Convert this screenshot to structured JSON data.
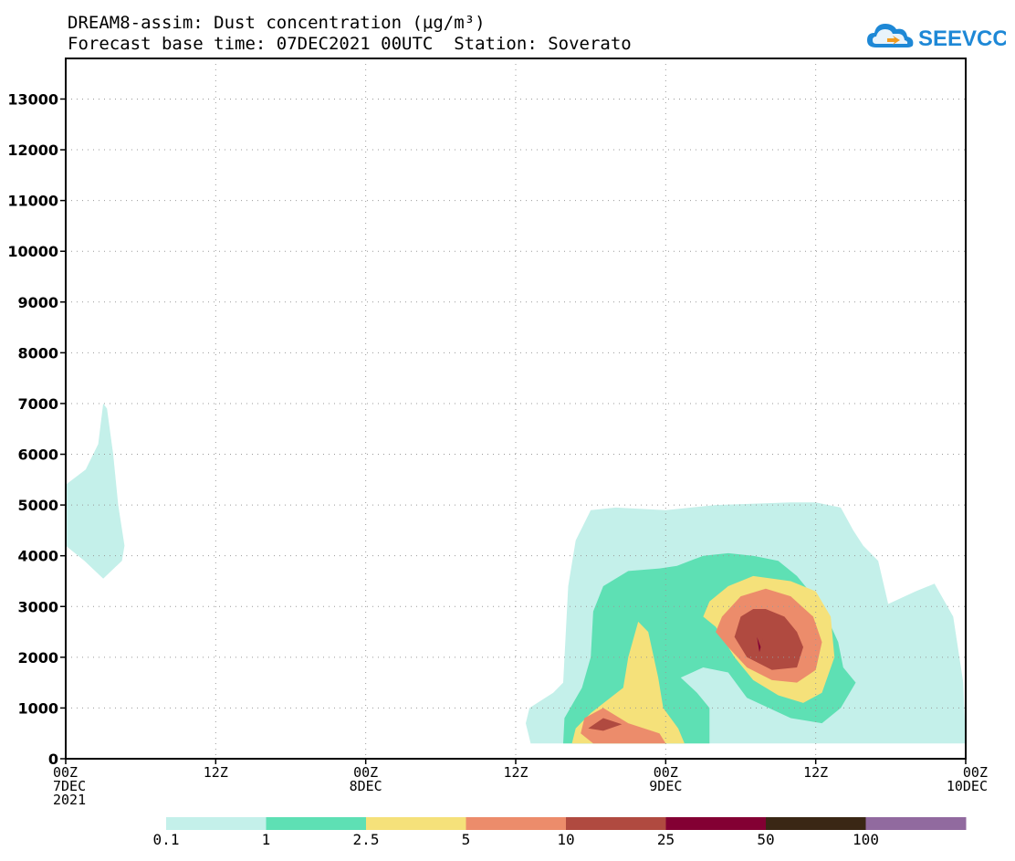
{
  "title": {
    "line1": "DREAM8-assim: Dust concentration (µg/m³)",
    "line2": "Forecast base time: 07DEC2021 00UTC  Station: Soverato"
  },
  "logo": {
    "text": "SEEVCCC"
  },
  "chart_data": {
    "type": "heatmap",
    "description_of_axes": "x: forecast time; y: height",
    "x_ticks": [
      {
        "hour": 0,
        "label": "00Z",
        "sub": "7DEC",
        "sub2": "2021"
      },
      {
        "hour": 12,
        "label": "12Z"
      },
      {
        "hour": 24,
        "label": "00Z",
        "sub": "8DEC"
      },
      {
        "hour": 36,
        "label": "12Z"
      },
      {
        "hour": 48,
        "label": "00Z",
        "sub": "9DEC"
      },
      {
        "hour": 60,
        "label": "12Z"
      },
      {
        "hour": 72,
        "label": "00Z",
        "sub": "10DEC"
      }
    ],
    "xlim_hours": [
      0,
      72
    ],
    "ylim": [
      0,
      13800
    ],
    "y_ticks": [
      0,
      1000,
      2000,
      3000,
      4000,
      5000,
      6000,
      7000,
      8000,
      9000,
      10000,
      11000,
      12000,
      13000
    ],
    "grid": true,
    "levels": [
      0.1,
      1,
      2.5,
      5,
      10,
      25,
      50,
      100
    ],
    "level_colors": [
      "#c4f0ea",
      "#5ee0b4",
      "#f5e17a",
      "#ec8c6b",
      "#b04a40",
      "#830033",
      "#3a2715",
      "#916a9f"
    ],
    "contours": [
      {
        "level": 0.1,
        "points": [
          [
            0,
            5400
          ],
          [
            1.6,
            5700
          ],
          [
            2.6,
            6200
          ],
          [
            3.0,
            7000
          ],
          [
            3.3,
            6900
          ],
          [
            3.8,
            6000
          ],
          [
            4.2,
            5000
          ],
          [
            4.7,
            4200
          ],
          [
            4.5,
            3900
          ],
          [
            3.0,
            3550
          ],
          [
            1.5,
            3900
          ],
          [
            0,
            4200
          ]
        ]
      },
      {
        "level": 0.1,
        "points": [
          [
            37.2,
            300
          ],
          [
            36.8,
            700
          ],
          [
            37.1,
            1000
          ],
          [
            39.0,
            1300
          ],
          [
            39.8,
            1500
          ],
          [
            40.2,
            3400
          ],
          [
            40.8,
            4300
          ],
          [
            42.0,
            4900
          ],
          [
            44.0,
            4950
          ],
          [
            48.0,
            4900
          ],
          [
            52.0,
            5000
          ],
          [
            58.0,
            5050
          ],
          [
            60.0,
            5050
          ],
          [
            62.0,
            4950
          ],
          [
            63.0,
            4500
          ],
          [
            63.8,
            4200
          ],
          [
            65.0,
            3900
          ],
          [
            65.8,
            3050
          ],
          [
            68.0,
            3300
          ],
          [
            69.5,
            3450
          ],
          [
            71.0,
            2800
          ],
          [
            71.8,
            1500
          ],
          [
            72.0,
            300
          ]
        ]
      },
      {
        "level": 1,
        "points": [
          [
            39.8,
            300
          ],
          [
            39.9,
            800
          ],
          [
            41.3,
            1400
          ],
          [
            42.0,
            2000
          ],
          [
            42.2,
            2900
          ],
          [
            43.0,
            3400
          ],
          [
            45.0,
            3700
          ],
          [
            47.5,
            3750
          ],
          [
            48.9,
            3800
          ],
          [
            51.0,
            4000
          ],
          [
            53.0,
            4050
          ],
          [
            55.0,
            4000
          ],
          [
            57.0,
            3900
          ],
          [
            58.5,
            3600
          ],
          [
            60.5,
            3000
          ],
          [
            61.8,
            2300
          ],
          [
            62.2,
            1800
          ],
          [
            63.2,
            1500
          ],
          [
            62.0,
            1000
          ],
          [
            60.5,
            700
          ],
          [
            58.0,
            800
          ],
          [
            54.5,
            1200
          ],
          [
            53.0,
            1700
          ],
          [
            51.0,
            1800
          ],
          [
            49.2,
            1600
          ],
          [
            50.5,
            1300
          ],
          [
            51.5,
            1000
          ],
          [
            51.5,
            300
          ]
        ]
      },
      {
        "level": 2.5,
        "points": [
          [
            40.5,
            300
          ],
          [
            40.8,
            600
          ],
          [
            42.0,
            900
          ],
          [
            44.6,
            1400
          ],
          [
            45.0,
            2000
          ],
          [
            45.8,
            2700
          ],
          [
            46.6,
            2500
          ],
          [
            47.4,
            1600
          ],
          [
            47.8,
            1000
          ],
          [
            49.0,
            600
          ],
          [
            49.5,
            300
          ]
        ]
      },
      {
        "level": 2.5,
        "points": [
          [
            51.0,
            2800
          ],
          [
            52.0,
            2600
          ],
          [
            53.5,
            2000
          ],
          [
            55.0,
            1550
          ],
          [
            57.0,
            1250
          ],
          [
            59.0,
            1100
          ],
          [
            60.5,
            1300
          ],
          [
            61.5,
            2000
          ],
          [
            61.2,
            2800
          ],
          [
            60.0,
            3300
          ],
          [
            58.0,
            3500
          ],
          [
            55.0,
            3600
          ],
          [
            53.0,
            3400
          ],
          [
            51.5,
            3100
          ]
        ]
      },
      {
        "level": 5,
        "points": [
          [
            42.2,
            300
          ],
          [
            41.2,
            500
          ],
          [
            41.5,
            800
          ],
          [
            43.0,
            1000
          ],
          [
            45.0,
            700
          ],
          [
            47.5,
            500
          ],
          [
            48.0,
            300
          ]
        ]
      },
      {
        "level": 5,
        "points": [
          [
            52.0,
            2500
          ],
          [
            53.0,
            2200
          ],
          [
            54.5,
            1800
          ],
          [
            56.5,
            1550
          ],
          [
            58.5,
            1500
          ],
          [
            60.0,
            1750
          ],
          [
            60.5,
            2300
          ],
          [
            59.8,
            2800
          ],
          [
            58.0,
            3200
          ],
          [
            56.0,
            3350
          ],
          [
            54.0,
            3200
          ],
          [
            52.5,
            2800
          ]
        ]
      },
      {
        "level": 10,
        "points": [
          [
            41.8,
            600
          ],
          [
            43.0,
            800
          ],
          [
            44.5,
            680
          ],
          [
            43.0,
            550
          ]
        ]
      },
      {
        "level": 10,
        "points": [
          [
            54.0,
            2800
          ],
          [
            53.5,
            2400
          ],
          [
            54.5,
            2000
          ],
          [
            56.5,
            1750
          ],
          [
            58.5,
            1800
          ],
          [
            59.0,
            2200
          ],
          [
            58.5,
            2500
          ],
          [
            57.5,
            2800
          ],
          [
            56.0,
            2950
          ],
          [
            55.0,
            2950
          ]
        ]
      },
      {
        "level": 25,
        "points": [
          [
            55.3,
            2400
          ],
          [
            55.5,
            2100
          ],
          [
            55.8,
            2400
          ],
          [
            55.6,
            2200
          ]
        ]
      }
    ]
  }
}
